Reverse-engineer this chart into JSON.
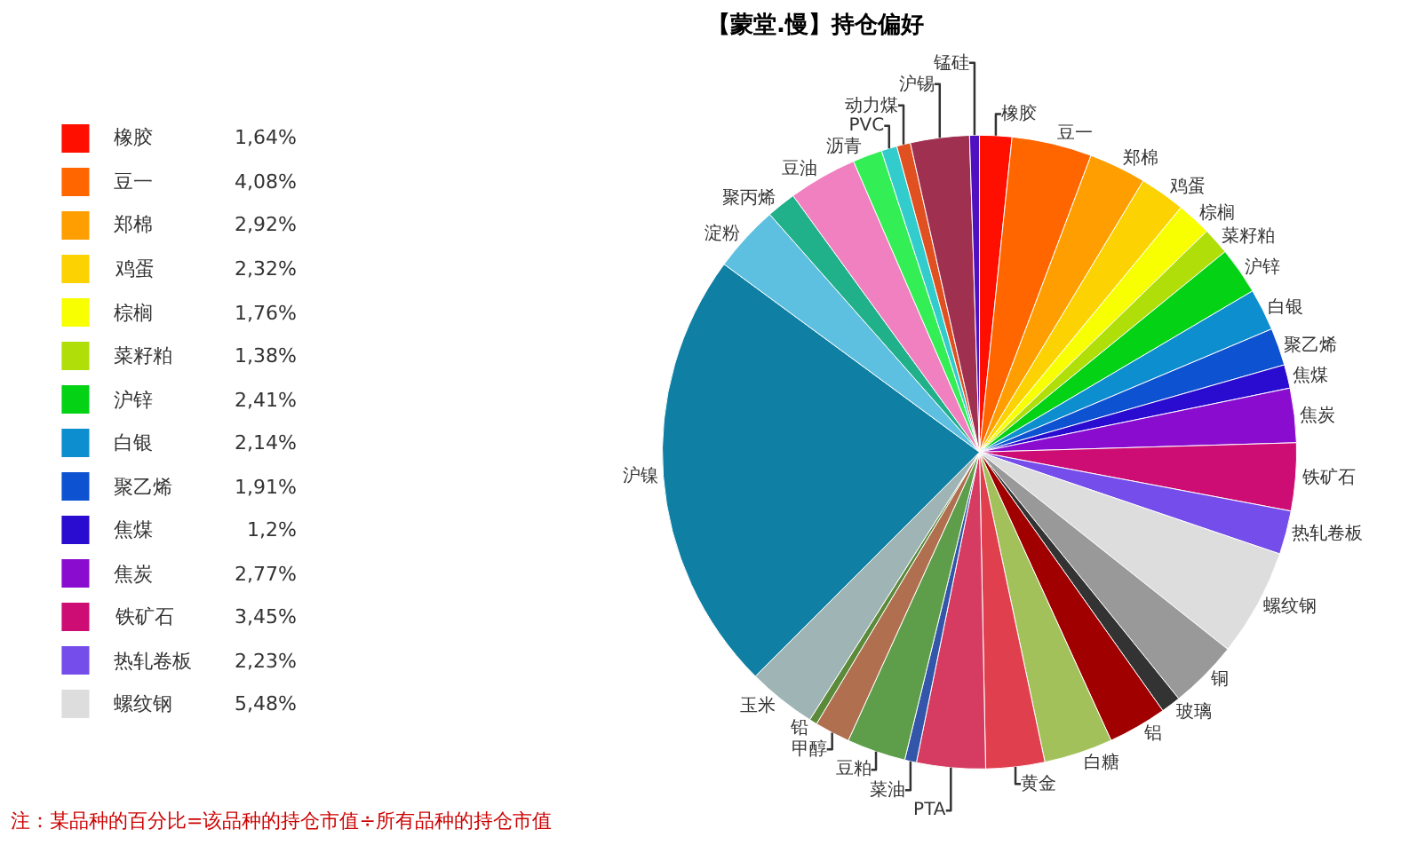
{
  "chart_data": {
    "type": "pie",
    "title": "【蒙堂.慢】持仓偏好",
    "categories": [
      "橡胶",
      "豆一",
      "郑棉",
      "鸡蛋",
      "棕榈",
      "菜籽粕",
      "沪锌",
      "白银",
      "聚乙烯",
      "焦煤",
      "焦炭",
      "铁矿石",
      "热轧卷板",
      "螺纹钢",
      "铜",
      "玻璃",
      "铝",
      "白糖",
      "黄金",
      "PTA",
      "菜油",
      "豆粕",
      "甲醇",
      "铅",
      "玉米",
      "沪镍",
      "淀粉",
      "聚丙烯",
      "豆油",
      "沥青",
      "PVC",
      "动力煤",
      "沪锡",
      "锰硅"
    ],
    "values": [
      1.64,
      4.08,
      2.92,
      2.32,
      1.76,
      1.38,
      2.41,
      2.14,
      1.91,
      1.2,
      2.77,
      3.45,
      2.23,
      5.48,
      3.5,
      1.0,
      3.0,
      3.5,
      3.0,
      3.5,
      0.6,
      3.0,
      1.8,
      0.4,
      3.5,
      22.61,
      3.4,
      1.5,
      3.5,
      1.5,
      0.8,
      0.7,
      3.0,
      0.5
    ],
    "value_labels": [
      "1,64%",
      "4,08%",
      "2,92%",
      "2,32%",
      "1,76%",
      "1,38%",
      "2,41%",
      "2,14%",
      "1,91%",
      "1,2%",
      "2,77%",
      "3,45%",
      "2,23%",
      "5,48%",
      null,
      null,
      null,
      null,
      null,
      null,
      null,
      null,
      null,
      null,
      null,
      null,
      null,
      null,
      null,
      null,
      null,
      null,
      null,
      null
    ],
    "colors": [
      "#ff0f00",
      "#ff6600",
      "#ff9e01",
      "#fcd202",
      "#f8ff01",
      "#b0de09",
      "#04d215",
      "#0d8ecf",
      "#0d52d1",
      "#2a0cd0",
      "#8a0ccf",
      "#cd0d74",
      "#754deb",
      "#dddddd",
      "#999999",
      "#333333",
      "#a00000",
      "#a3c15a",
      "#e0404e",
      "#d63c62",
      "#3355aa",
      "#5e9e4a",
      "#b07050",
      "#5a8a3a",
      "#9fb4b4",
      "#0f7fa3",
      "#5ec0e0",
      "#20b08a",
      "#f080c0",
      "#33ee55",
      "#33cccc",
      "#e05020",
      "#a03050",
      "#5010c0"
    ],
    "legend": "left",
    "annotations": [
      "注：某品种的百分比=该品种的持仓市值÷所有品种的持仓市值"
    ]
  }
}
